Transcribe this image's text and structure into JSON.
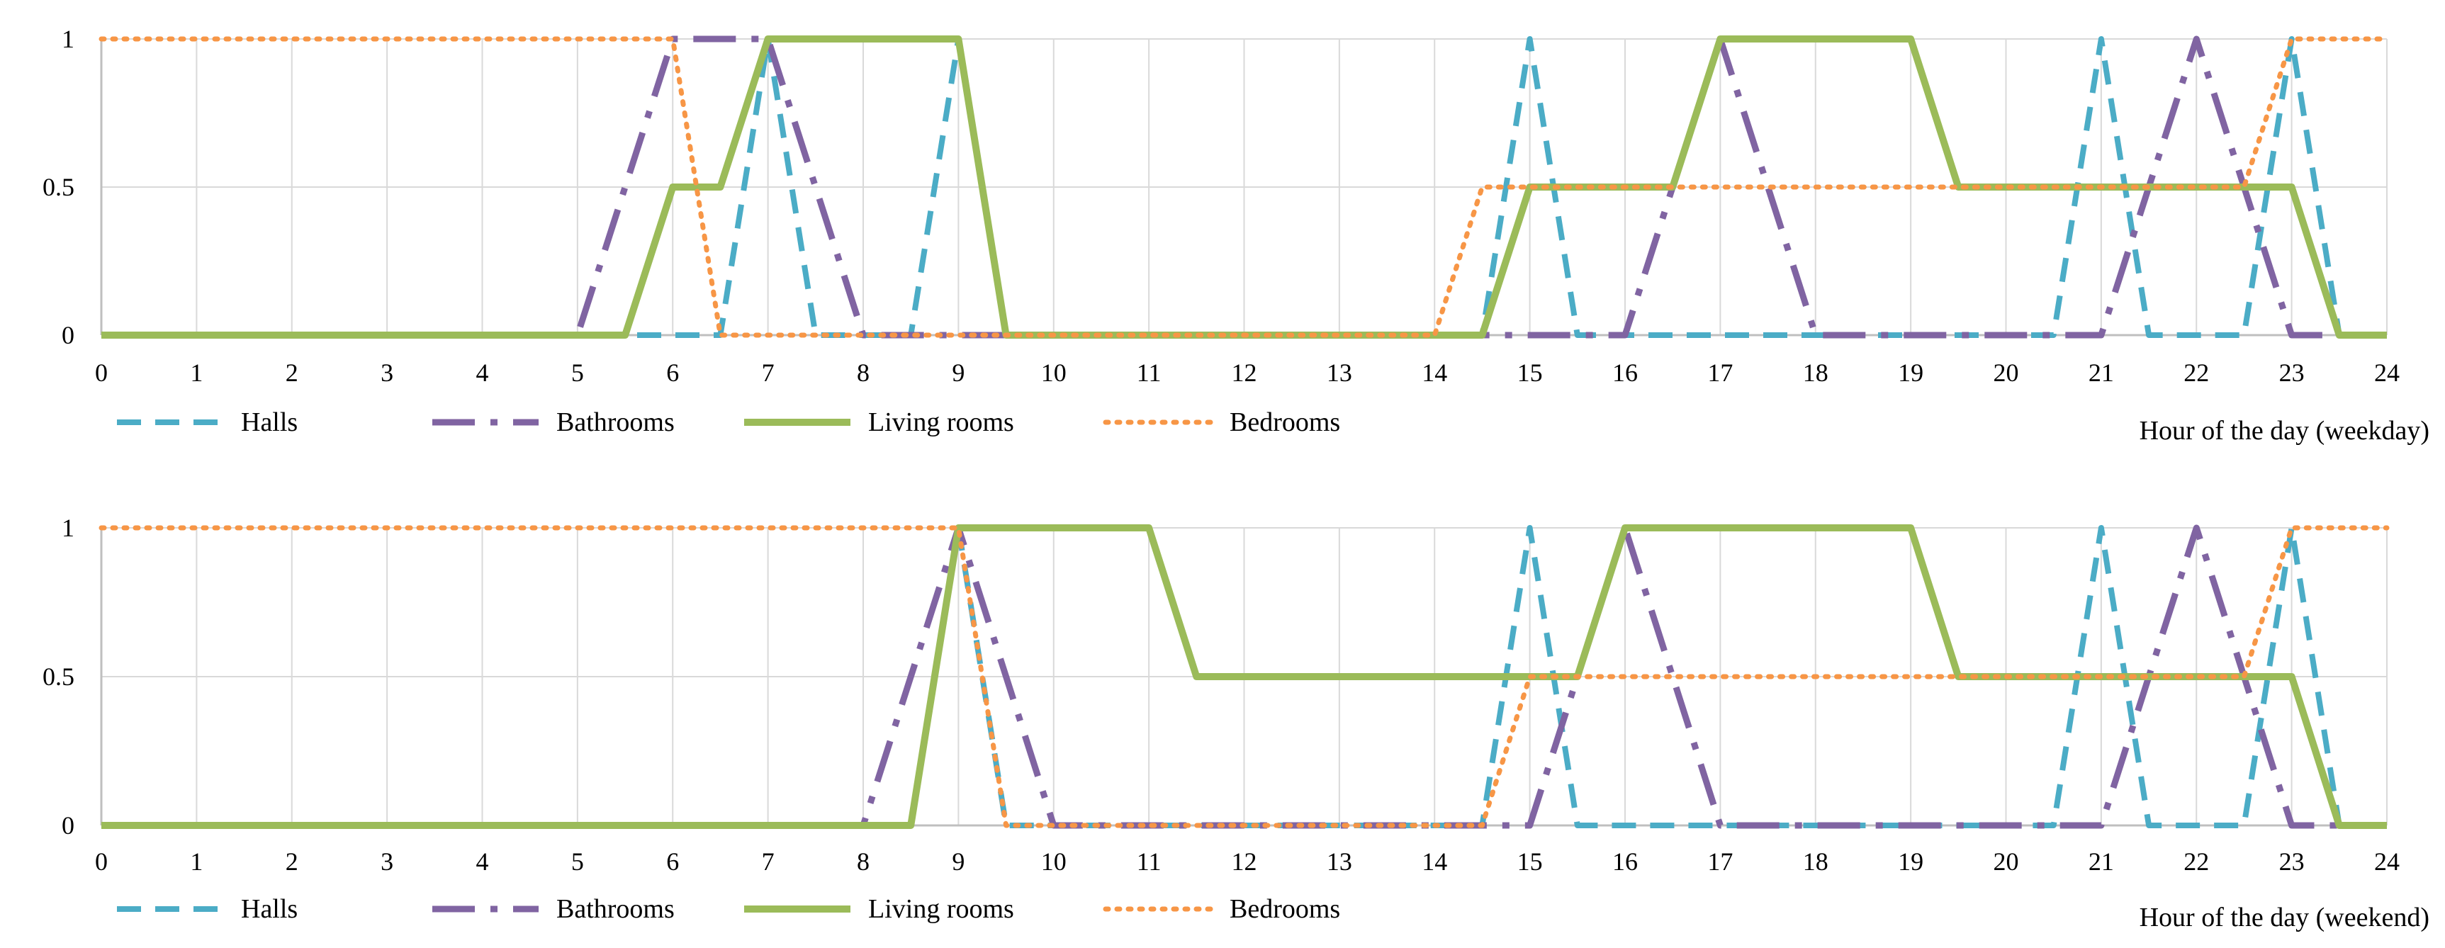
{
  "colors": {
    "halls": "#4bacc6",
    "bathrooms": "#8064a2",
    "living_rooms": "#9bbb59",
    "bedrooms": "#f79646",
    "grid": "#d9d9d9",
    "axis": "#bfbfbf"
  },
  "chart_data": [
    {
      "type": "line",
      "title": "",
      "xlabel": "Hour of the day (weekday)",
      "ylabel": "",
      "xlim": [
        0,
        24
      ],
      "ylim": [
        0,
        1
      ],
      "xticks": [
        "0",
        "1",
        "2",
        "3",
        "4",
        "5",
        "6",
        "7",
        "8",
        "9",
        "10",
        "11",
        "12",
        "13",
        "14",
        "15",
        "16",
        "17",
        "18",
        "19",
        "20",
        "21",
        "22",
        "23",
        "24"
      ],
      "yticks": [
        "0",
        "0.5",
        "1"
      ],
      "grid": true,
      "legend": "bottom",
      "series": [
        {
          "name": "Halls",
          "style": "dash",
          "color": "halls",
          "points": [
            [
              0,
              0
            ],
            [
              6.5,
              0
            ],
            [
              7,
              1
            ],
            [
              7.5,
              0
            ],
            [
              8.5,
              0
            ],
            [
              9,
              1
            ],
            [
              9.5,
              0
            ],
            [
              14.5,
              0
            ],
            [
              15,
              1
            ],
            [
              15.5,
              0
            ],
            [
              20.5,
              0
            ],
            [
              21,
              1
            ],
            [
              21.5,
              0
            ],
            [
              22.5,
              0
            ],
            [
              23,
              1
            ],
            [
              23.5,
              0
            ],
            [
              24,
              0
            ]
          ]
        },
        {
          "name": "Bathrooms",
          "style": "dashdot",
          "color": "bathrooms",
          "points": [
            [
              0,
              0
            ],
            [
              5,
              0
            ],
            [
              6,
              1
            ],
            [
              7,
              1
            ],
            [
              8,
              0
            ],
            [
              15,
              0
            ],
            [
              16,
              0
            ],
            [
              17,
              1
            ],
            [
              18,
              0
            ],
            [
              21,
              0
            ],
            [
              22,
              1
            ],
            [
              23,
              0
            ],
            [
              24,
              0
            ]
          ]
        },
        {
          "name": "Living rooms",
          "style": "solid",
          "color": "living_rooms",
          "points": [
            [
              0,
              0
            ],
            [
              5.5,
              0
            ],
            [
              6,
              0.5
            ],
            [
              6.5,
              0.5
            ],
            [
              7,
              1
            ],
            [
              9,
              1
            ],
            [
              9.5,
              0
            ],
            [
              14.5,
              0
            ],
            [
              15,
              0.5
            ],
            [
              16.5,
              0.5
            ],
            [
              17,
              1
            ],
            [
              19,
              1
            ],
            [
              19.5,
              0.5
            ],
            [
              23,
              0.5
            ],
            [
              23.5,
              0
            ],
            [
              24,
              0
            ]
          ]
        },
        {
          "name": "Bedrooms",
          "style": "dot",
          "color": "bedrooms",
          "points": [
            [
              0,
              1
            ],
            [
              6,
              1
            ],
            [
              6.5,
              0
            ],
            [
              14,
              0
            ],
            [
              14.5,
              0.5
            ],
            [
              22.5,
              0.5
            ],
            [
              23,
              1
            ],
            [
              24,
              1
            ]
          ]
        }
      ]
    },
    {
      "type": "line",
      "title": "",
      "xlabel": "Hour of the day (weekend)",
      "ylabel": "",
      "xlim": [
        0,
        24
      ],
      "ylim": [
        0,
        1
      ],
      "xticks": [
        "0",
        "1",
        "2",
        "3",
        "4",
        "5",
        "6",
        "7",
        "8",
        "9",
        "10",
        "11",
        "12",
        "13",
        "14",
        "15",
        "16",
        "17",
        "18",
        "19",
        "20",
        "21",
        "22",
        "23",
        "24"
      ],
      "yticks": [
        "0",
        "0.5",
        "1"
      ],
      "grid": true,
      "legend": "bottom",
      "series": [
        {
          "name": "Halls",
          "style": "dash",
          "color": "halls",
          "points": [
            [
              0,
              0
            ],
            [
              8.5,
              0
            ],
            [
              9,
              1
            ],
            [
              9.5,
              0
            ],
            [
              14.5,
              0
            ],
            [
              15,
              1
            ],
            [
              15.5,
              0
            ],
            [
              20.5,
              0
            ],
            [
              21,
              1
            ],
            [
              21.5,
              0
            ],
            [
              22.5,
              0
            ],
            [
              23,
              1
            ],
            [
              23.5,
              0
            ],
            [
              24,
              0
            ]
          ]
        },
        {
          "name": "Bathrooms",
          "style": "dashdot",
          "color": "bathrooms",
          "points": [
            [
              0,
              0
            ],
            [
              8,
              0
            ],
            [
              9,
              1
            ],
            [
              10,
              0
            ],
            [
              15,
              0
            ],
            [
              16,
              1
            ],
            [
              17,
              0
            ],
            [
              21,
              0
            ],
            [
              22,
              1
            ],
            [
              23,
              0
            ],
            [
              24,
              0
            ]
          ]
        },
        {
          "name": "Living rooms",
          "style": "solid",
          "color": "living_rooms",
          "points": [
            [
              0,
              0
            ],
            [
              8.5,
              0
            ],
            [
              9,
              1
            ],
            [
              11,
              1
            ],
            [
              11.5,
              0.5
            ],
            [
              15.5,
              0.5
            ],
            [
              16,
              1
            ],
            [
              19,
              1
            ],
            [
              19.5,
              0.5
            ],
            [
              23,
              0.5
            ],
            [
              23.5,
              0
            ],
            [
              24,
              0
            ]
          ]
        },
        {
          "name": "Bedrooms",
          "style": "dot",
          "color": "bedrooms",
          "points": [
            [
              0,
              1
            ],
            [
              9,
              1
            ],
            [
              9.5,
              0
            ],
            [
              14.5,
              0
            ],
            [
              15,
              0.5
            ],
            [
              22.5,
              0.5
            ],
            [
              23,
              1
            ],
            [
              24,
              1
            ]
          ]
        }
      ]
    }
  ]
}
